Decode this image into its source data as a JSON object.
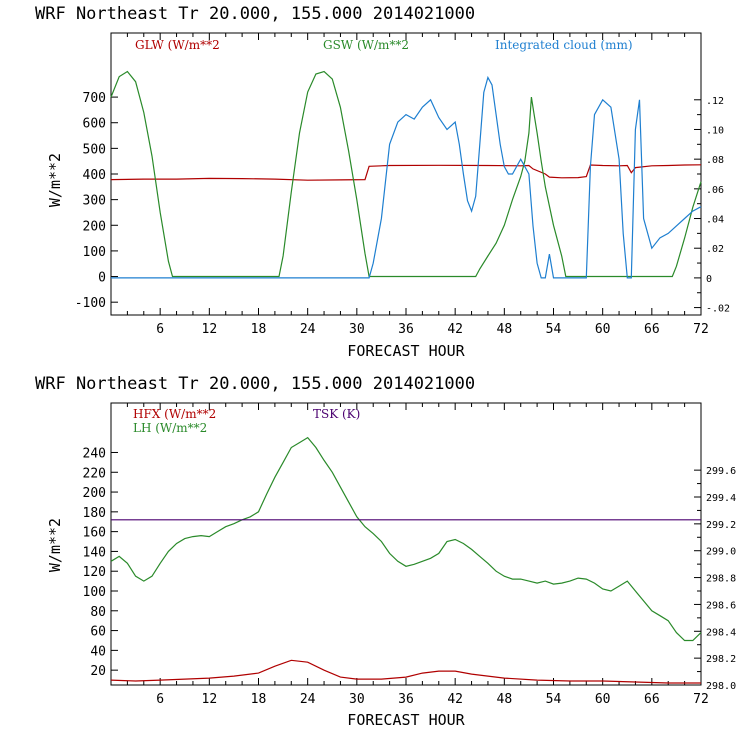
{
  "chart_data": [
    {
      "type": "line",
      "title": "WRF  Northeast Tr  20.000, 155.000  2014021000",
      "xlabel": "FORECAST HOUR",
      "ylabel": "W/m**2",
      "xlim": [
        0,
        72
      ],
      "ylim": [
        -150,
        950
      ],
      "y2lim": [
        -0.025,
        0.165
      ],
      "x_ticks": [
        6,
        12,
        18,
        24,
        30,
        36,
        42,
        48,
        54,
        60,
        66,
        72
      ],
      "y_ticks": [
        -100,
        0,
        100,
        200,
        300,
        400,
        500,
        600,
        700
      ],
      "y2_ticks": [
        -0.02,
        0,
        0.02,
        0.04,
        0.06,
        0.08,
        0.1,
        0.12
      ],
      "y2_tick_labels": [
        "-.02",
        "0",
        ".02",
        ".04",
        ".06",
        ".08",
        ".10",
        ".12"
      ],
      "series": [
        {
          "name": "GLW (W/m**2",
          "color": "#b00000",
          "axis": "left",
          "x": [
            0,
            4,
            8,
            12,
            16,
            20,
            24,
            28,
            31,
            31.5,
            34,
            40,
            46,
            50,
            51,
            51.5,
            53,
            53.5,
            55,
            57,
            58,
            58.5,
            60,
            62,
            63,
            63.5,
            64,
            66,
            68,
            70,
            72
          ],
          "y": [
            378,
            380,
            380,
            383,
            382,
            380,
            376,
            377,
            378,
            430,
            433,
            434,
            433,
            432,
            433,
            420,
            400,
            388,
            385,
            386,
            390,
            435,
            433,
            432,
            433,
            405,
            425,
            432,
            433,
            435,
            436
          ]
        },
        {
          "name": "GSW (W/m**2",
          "color": "#2a8a2a",
          "axis": "left",
          "x": [
            0,
            1,
            2,
            3,
            4,
            5,
            6,
            7,
            7.5,
            20.5,
            21,
            22,
            23,
            24,
            25,
            26,
            27,
            28,
            29,
            30,
            31,
            31.5,
            44.5,
            45,
            46,
            47,
            48,
            49,
            50,
            50.5,
            51,
            51.3,
            51.6,
            52,
            52.5,
            53,
            54,
            55,
            55.5,
            68.5,
            69,
            70,
            71,
            72
          ],
          "y": [
            700,
            780,
            800,
            760,
            640,
            470,
            250,
            60,
            0,
            0,
            80,
            330,
            560,
            720,
            790,
            800,
            770,
            660,
            490,
            300,
            90,
            0,
            0,
            30,
            80,
            130,
            200,
            300,
            390,
            450,
            560,
            700,
            640,
            560,
            450,
            350,
            200,
            80,
            0,
            0,
            40,
            150,
            270,
            370
          ]
        },
        {
          "name": "Integrated cloud (mm)",
          "color": "#1e7fd0",
          "axis": "right",
          "x": [
            0,
            31.5,
            32,
            33,
            34,
            35,
            36,
            37,
            38,
            39,
            40,
            41,
            42,
            42.5,
            43,
            43.5,
            44,
            44.5,
            45,
            45.5,
            46,
            46.5,
            47,
            47.5,
            48,
            48.5,
            49,
            49.5,
            50,
            50.5,
            51,
            51.5,
            52,
            52.5,
            53,
            53.5,
            54,
            54.5,
            55,
            56,
            57,
            58,
            58.5,
            59,
            60,
            61,
            62,
            62.5,
            63,
            63.5,
            64,
            64.5,
            65,
            66,
            67,
            68,
            69,
            70,
            71,
            72
          ],
          "y": [
            0,
            0,
            0.01,
            0.04,
            0.09,
            0.105,
            0.11,
            0.107,
            0.115,
            0.12,
            0.108,
            0.1,
            0.105,
            0.09,
            0.07,
            0.052,
            0.045,
            0.055,
            0.09,
            0.125,
            0.135,
            0.13,
            0.11,
            0.09,
            0.075,
            0.07,
            0.07,
            0.075,
            0.08,
            0.075,
            0.07,
            0.035,
            0.01,
            0.0,
            0.0,
            0.016,
            0.0,
            0.0,
            0.0,
            0.0,
            0.0,
            0.0,
            0.075,
            0.11,
            0.12,
            0.115,
            0.08,
            0.03,
            0.0,
            0.0,
            0.1,
            0.12,
            0.04,
            0.02,
            0.027,
            0.03,
            0.035,
            0.04,
            0.045,
            0.048
          ]
        }
      ]
    },
    {
      "type": "line",
      "title": "WRF  Northeast Tr  20.000, 155.000  2014021000",
      "xlabel": "FORECAST HOUR",
      "ylabel": "W/m**2",
      "xlim": [
        0,
        72
      ],
      "ylim": [
        5,
        290
      ],
      "y2lim": [
        298.0,
        300.1
      ],
      "x_ticks": [
        6,
        12,
        18,
        24,
        30,
        36,
        42,
        48,
        54,
        60,
        66,
        72
      ],
      "y_ticks": [
        20,
        40,
        60,
        80,
        100,
        120,
        140,
        160,
        180,
        200,
        220,
        240
      ],
      "y2_ticks": [
        298.0,
        298.2,
        298.4,
        298.6,
        298.8,
        299.0,
        299.2,
        299.4,
        299.6
      ],
      "y2_tick_labels": [
        "298.0",
        "298.2",
        "298.4",
        "298.6",
        "298.8",
        "299.0",
        "299.2",
        "299.4",
        "299.6"
      ],
      "series": [
        {
          "name": "HFX (W/m**2",
          "color": "#b00000",
          "axis": "left",
          "x": [
            0,
            3,
            6,
            9,
            12,
            15,
            18,
            20,
            22,
            24,
            26,
            28,
            30,
            33,
            36,
            38,
            40,
            42,
            44,
            48,
            52,
            56,
            60,
            64,
            68,
            72
          ],
          "y": [
            10,
            9,
            10,
            11,
            12,
            14,
            17,
            24,
            30,
            28,
            20,
            13,
            11,
            11,
            13,
            17,
            19,
            19,
            16,
            12,
            10,
            9,
            9,
            8,
            7,
            7
          ]
        },
        {
          "name": "LH  (W/m**2",
          "color": "#2a8a2a",
          "axis": "left",
          "x": [
            0,
            1,
            2,
            3,
            4,
            5,
            6,
            7,
            8,
            9,
            10,
            11,
            12,
            13,
            14,
            15,
            16,
            17,
            18,
            19,
            20,
            21,
            22,
            23,
            24,
            25,
            26,
            27,
            28,
            29,
            30,
            31,
            32,
            33,
            34,
            35,
            36,
            37,
            38,
            39,
            40,
            41,
            42,
            43,
            44,
            45,
            46,
            47,
            48,
            49,
            50,
            51,
            52,
            53,
            54,
            55,
            56,
            57,
            58,
            59,
            60,
            61,
            62,
            63,
            64,
            65,
            66,
            67,
            68,
            69,
            70,
            71,
            72
          ],
          "y": [
            130,
            135,
            128,
            115,
            110,
            115,
            128,
            140,
            148,
            153,
            155,
            156,
            155,
            160,
            165,
            168,
            172,
            175,
            180,
            198,
            215,
            230,
            245,
            250,
            255,
            245,
            232,
            220,
            205,
            190,
            175,
            165,
            158,
            150,
            138,
            130,
            125,
            127,
            130,
            133,
            138,
            150,
            152,
            148,
            142,
            135,
            128,
            120,
            115,
            112,
            112,
            110,
            108,
            110,
            107,
            108,
            110,
            113,
            112,
            108,
            102,
            100,
            105,
            110,
            100,
            90,
            80,
            75,
            70,
            58,
            50,
            50,
            58
          ],
          "stroke_note": ""
        },
        {
          "name": "TSK (K)",
          "color": "#4b0070",
          "axis": "right",
          "x": [
            0,
            72
          ],
          "y": [
            299.23,
            299.23
          ]
        }
      ],
      "legend_lines": [
        "HFX (W/m**2",
        "LH  (W/m**2"
      ]
    }
  ]
}
